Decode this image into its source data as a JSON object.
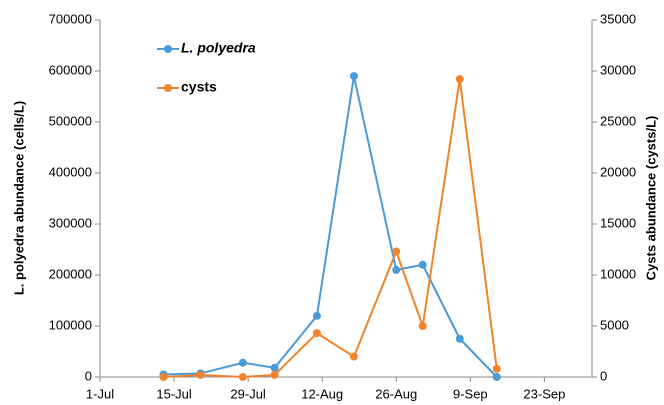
{
  "chart_data": {
    "type": "line",
    "x": [
      "13-Jul",
      "20-Jul",
      "28-Jul",
      "3-Aug",
      "11-Aug",
      "18-Aug",
      "26-Aug",
      "31-Aug",
      "7-Sep",
      "14-Sep"
    ],
    "xlim": [
      "1-Jul",
      "2-Oct"
    ],
    "xticks": [
      "1-Jul",
      "15-Jul",
      "29-Jul",
      "12-Aug",
      "26-Aug",
      "9-Sep",
      "23-Sep"
    ],
    "ylabel": "L. polyedra abundance (cells/L)",
    "y2label": "Cysts abundance (cysts/L)",
    "ylim": [
      0,
      700000
    ],
    "yticks": [
      0,
      100000,
      200000,
      300000,
      400000,
      500000,
      600000,
      700000
    ],
    "y2lim": [
      0,
      35000
    ],
    "y2ticks": [
      0,
      5000,
      10000,
      15000,
      20000,
      25000,
      30000,
      35000
    ],
    "legend": "upper left",
    "series": [
      {
        "name": "L. polyedra",
        "color": "#4a9ad8",
        "values": [
          5000,
          7000,
          28000,
          18000,
          120000,
          590000,
          210000,
          220000,
          75000,
          0
        ]
      },
      {
        "name": "cysts",
        "color": "#f0842c",
        "axis": "y2",
        "values": [
          0,
          200,
          0,
          200,
          4300,
          2000,
          12300,
          5000,
          29200,
          800
        ]
      }
    ]
  }
}
